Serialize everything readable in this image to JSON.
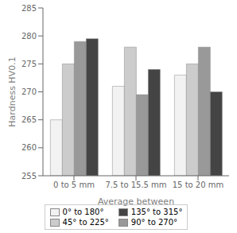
{
  "chart_data": {
    "type": "bar",
    "categories": [
      "0 to 5 mm",
      "7.5 to 15.5 mm",
      "15 to 20 mm"
    ],
    "series": [
      {
        "name": "0° to 180°",
        "color": "#f2f2f2",
        "values": [
          265,
          271,
          273
        ]
      },
      {
        "name": "45° to 225°",
        "color": "#cccccc",
        "values": [
          275,
          278,
          275
        ]
      },
      {
        "name": "90° to 270°",
        "color": "#999999",
        "values": [
          279,
          269.5,
          278
        ]
      },
      {
        "name": "135° to 315°",
        "color": "#444444",
        "values": [
          279.5,
          274,
          270
        ]
      }
    ],
    "xlabel": "Average between",
    "ylabel": "Hardness HV0.1",
    "ylim": [
      255,
      285
    ],
    "yticks": [
      255,
      260,
      265,
      270,
      275,
      280,
      285
    ],
    "grid": false,
    "legend": "bottom"
  }
}
